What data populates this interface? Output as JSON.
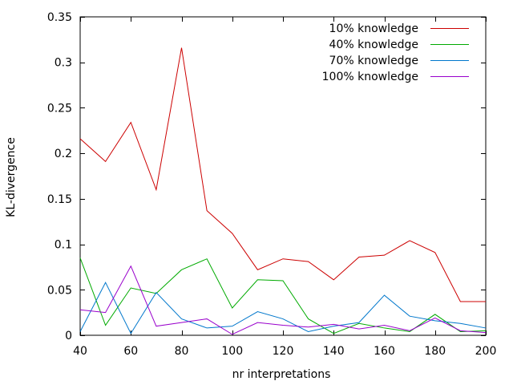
{
  "chart_data": {
    "type": "line",
    "xlabel": "nr interpretations",
    "ylabel": "KL-divergence",
    "xlim": [
      40,
      200
    ],
    "ylim": [
      0,
      0.35
    ],
    "x_ticks": [
      40,
      60,
      80,
      100,
      120,
      140,
      160,
      180,
      200
    ],
    "x_tick_labels": [
      "40",
      "60",
      "80",
      "100",
      "120",
      "140",
      "160",
      "180",
      "200"
    ],
    "y_ticks": [
      0,
      0.05,
      0.1,
      0.15,
      0.2,
      0.25,
      0.3,
      0.35
    ],
    "y_tick_labels": [
      "0",
      "0.05",
      "0.1",
      "0.15",
      "0.2",
      "0.25",
      "0.3",
      "0.35"
    ],
    "grid": false,
    "legend_position": "top-right",
    "x": [
      40,
      50,
      60,
      70,
      80,
      90,
      100,
      110,
      120,
      130,
      140,
      150,
      160,
      170,
      180,
      190,
      200
    ],
    "series": [
      {
        "name": "10% knowledge",
        "color": "#cc0000",
        "values": [
          0.216,
          0.191,
          0.234,
          0.16,
          0.316,
          0.137,
          0.112,
          0.072,
          0.084,
          0.081,
          0.061,
          0.086,
          0.088,
          0.104,
          0.091,
          0.037,
          0.037
        ]
      },
      {
        "name": "40% knowledge",
        "color": "#00aa00",
        "values": [
          0.085,
          0.011,
          0.052,
          0.046,
          0.072,
          0.084,
          0.03,
          0.061,
          0.06,
          0.018,
          0.002,
          0.013,
          0.008,
          0.004,
          0.023,
          0.004,
          0.005
        ]
      },
      {
        "name": "70% knowledge",
        "color": "#0077cc",
        "values": [
          0.004,
          0.058,
          0.002,
          0.047,
          0.018,
          0.008,
          0.01,
          0.026,
          0.018,
          0.004,
          0.01,
          0.014,
          0.044,
          0.021,
          0.016,
          0.013,
          0.008
        ]
      },
      {
        "name": "100% knowledge",
        "color": "#9900cc",
        "values": [
          0.028,
          0.025,
          0.076,
          0.01,
          0.014,
          0.018,
          0.001,
          0.014,
          0.011,
          0.009,
          0.012,
          0.007,
          0.011,
          0.005,
          0.019,
          0.005,
          0.003
        ]
      }
    ]
  }
}
